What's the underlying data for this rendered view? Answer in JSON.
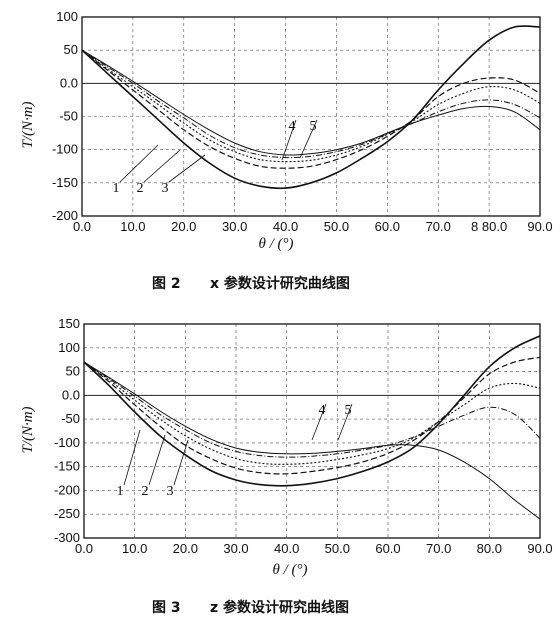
{
  "chart_data": [
    {
      "type": "line",
      "caption_num": "图 2",
      "caption_text": "x 参数设计研究曲线图",
      "xlabel": "θ / (°)",
      "ylabel": "T/(N·m)",
      "xlim": [
        0,
        90
      ],
      "ylim": [
        -200,
        100
      ],
      "x_ticks": [
        0,
        10,
        20,
        30,
        40,
        50,
        60,
        70,
        80,
        90
      ],
      "x_tick_labels": [
        "0.0",
        "10.0",
        "20.0",
        "30.0",
        "40.0",
        "50.0",
        "60.0",
        "70.0",
        "8 80.0",
        "90.0"
      ],
      "y_ticks": [
        100,
        50,
        0,
        -50,
        -100,
        -150,
        -200
      ],
      "y_tick_labels": [
        "100",
        "50",
        "0.0",
        "-50",
        "-100",
        "-150",
        "-200"
      ],
      "grid": true,
      "x": [
        0,
        5,
        10,
        15,
        20,
        25,
        30,
        35,
        40,
        45,
        50,
        55,
        60,
        65,
        70,
        75,
        80,
        85,
        90
      ],
      "series": [
        {
          "name": "1",
          "values": [
            50,
            15,
            -20,
            -55,
            -90,
            -120,
            -143,
            -155,
            -158,
            -150,
            -135,
            -113,
            -88,
            -55,
            -10,
            30,
            65,
            85,
            85
          ]
        },
        {
          "name": "2",
          "values": [
            50,
            20,
            -10,
            -40,
            -70,
            -95,
            -113,
            -125,
            -128,
            -125,
            -115,
            -100,
            -80,
            -55,
            -20,
            0,
            8,
            5,
            -15
          ]
        },
        {
          "name": "3",
          "values": [
            50,
            22,
            -5,
            -32,
            -60,
            -85,
            -103,
            -115,
            -118,
            -116,
            -108,
            -95,
            -77,
            -57,
            -32,
            -15,
            -5,
            -10,
            -30
          ]
        },
        {
          "name": "4",
          "values": [
            50,
            25,
            0,
            -27,
            -52,
            -78,
            -97,
            -108,
            -112,
            -110,
            -103,
            -92,
            -76,
            -60,
            -43,
            -30,
            -25,
            -32,
            -52
          ]
        },
        {
          "name": "5",
          "values": [
            50,
            27,
            3,
            -22,
            -47,
            -70,
            -90,
            -103,
            -108,
            -106,
            -100,
            -90,
            -75,
            -60,
            -48,
            -38,
            -35,
            -43,
            -70
          ]
        }
      ],
      "curve_labels": [
        "1",
        "2",
        "3",
        "4",
        "5"
      ]
    },
    {
      "type": "line",
      "caption_num": "图 3",
      "caption_text": "z 参数设计研究曲线图",
      "xlabel": "θ / (°)",
      "ylabel": "T/(N·m)",
      "xlim": [
        0,
        90
      ],
      "ylim": [
        -300,
        150
      ],
      "x_ticks": [
        0,
        10,
        20,
        30,
        40,
        50,
        60,
        70,
        80,
        90
      ],
      "x_tick_labels": [
        "0.0",
        "10.0",
        "20.0",
        "30.0",
        "40.0",
        "50.0",
        "60.0",
        "70.0",
        "80.0",
        "90.0"
      ],
      "y_ticks": [
        150,
        100,
        50,
        0,
        -50,
        -100,
        -150,
        -200,
        -250,
        -300
      ],
      "y_tick_labels": [
        "150",
        "100",
        "50",
        "0.0",
        "-50",
        "-100",
        "-150",
        "-200",
        "-250",
        "-300"
      ],
      "grid": true,
      "x": [
        0,
        5,
        10,
        15,
        20,
        25,
        30,
        35,
        40,
        45,
        50,
        55,
        60,
        65,
        70,
        75,
        80,
        85,
        90
      ],
      "series": [
        {
          "name": "1",
          "values": [
            70,
            20,
            -35,
            -85,
            -125,
            -158,
            -178,
            -188,
            -190,
            -185,
            -175,
            -160,
            -140,
            -110,
            -60,
            0,
            60,
            100,
            125
          ]
        },
        {
          "name": "2",
          "values": [
            70,
            28,
            -20,
            -65,
            -105,
            -133,
            -153,
            -163,
            -165,
            -160,
            -152,
            -140,
            -122,
            -95,
            -55,
            -5,
            45,
            70,
            80
          ]
        },
        {
          "name": "3",
          "values": [
            70,
            32,
            -10,
            -50,
            -85,
            -113,
            -133,
            -143,
            -145,
            -142,
            -135,
            -125,
            -112,
            -90,
            -55,
            -20,
            15,
            25,
            15
          ]
        },
        {
          "name": "4",
          "values": [
            70,
            35,
            -2,
            -40,
            -72,
            -100,
            -118,
            -127,
            -130,
            -128,
            -123,
            -115,
            -105,
            -88,
            -65,
            -42,
            -25,
            -40,
            -90
          ]
        },
        {
          "name": "5",
          "values": [
            70,
            37,
            3,
            -33,
            -65,
            -92,
            -111,
            -120,
            -123,
            -122,
            -118,
            -112,
            -105,
            -105,
            -115,
            -140,
            -175,
            -220,
            -260
          ]
        }
      ],
      "curve_labels": [
        "1",
        "2",
        "3",
        "4",
        "5"
      ]
    }
  ]
}
